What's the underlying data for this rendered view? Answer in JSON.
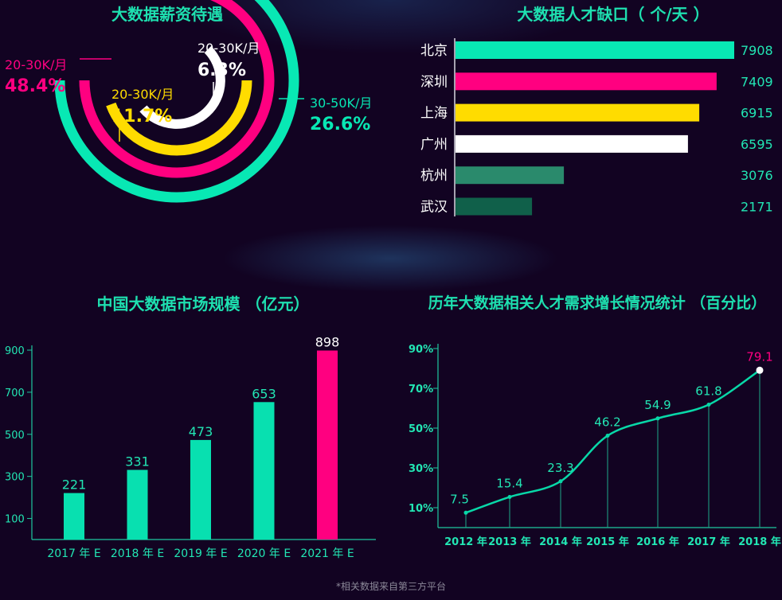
{
  "footnote": "*相关数据来自第三方平台",
  "chart_data": [
    {
      "type": "pie",
      "title": "大数据薪资待遇",
      "slices": [
        {
          "label": "20-30K/月",
          "value_text": "48.4%",
          "value": 48.4,
          "color": "#ff0080"
        },
        {
          "label": "20-30K/月",
          "value_text": "11.7%",
          "value": 11.7,
          "color": "#ffdc00"
        },
        {
          "label": "20-30K/月",
          "value_text": "6.3%",
          "value": 6.3,
          "color": "#ffffff"
        },
        {
          "label": "30-50K/月",
          "value_text": "26.6%",
          "value": 26.6,
          "color": "#08e8b4"
        }
      ]
    },
    {
      "type": "bar",
      "orientation": "horizontal",
      "title": "大数据人才缺口（ 个/天 ）",
      "categories": [
        "北京",
        "深圳",
        "上海",
        "广州",
        "杭州",
        "武汉"
      ],
      "values": [
        7908,
        7409,
        6915,
        6595,
        3076,
        2171
      ],
      "colors": [
        "#08e8b4",
        "#ff0080",
        "#ffdc00",
        "#ffffff",
        "#2a8a6c",
        "#10604a"
      ]
    },
    {
      "type": "bar",
      "title": "中国大数据市场规模 （亿元）",
      "categories": [
        "2017 年 E",
        "2018 年 E",
        "2019 年 E",
        "2020 年 E",
        "2021 年 E"
      ],
      "values": [
        221,
        331,
        473,
        653,
        898
      ],
      "y_ticks": [
        "100",
        "300",
        "500",
        "700",
        "900"
      ],
      "ylim": [
        0,
        900
      ],
      "colors": [
        "#08e0b0",
        "#08e0b0",
        "#08e0b0",
        "#08e0b0",
        "#ff0080"
      ]
    },
    {
      "type": "line",
      "title": "历年大数据相关人才需求增长情况统计 （百分比）",
      "x": [
        "2012 年",
        "2013 年",
        "2014 年",
        "2015 年",
        "2016 年",
        "2017 年",
        "2018 年"
      ],
      "values": [
        7.5,
        15.4,
        23.3,
        46.2,
        54.9,
        61.8,
        79.1
      ],
      "value_labels": [
        "7.5",
        "15.4",
        "23.3",
        "46.2",
        "54.9",
        "61.8",
        "79.1"
      ],
      "y_ticks": [
        "10%",
        "30%",
        "50%",
        "70%",
        "90%"
      ],
      "ylim": [
        0,
        90
      ],
      "line_color": "#08d8a8",
      "highlight_color": "#ff0080"
    }
  ]
}
